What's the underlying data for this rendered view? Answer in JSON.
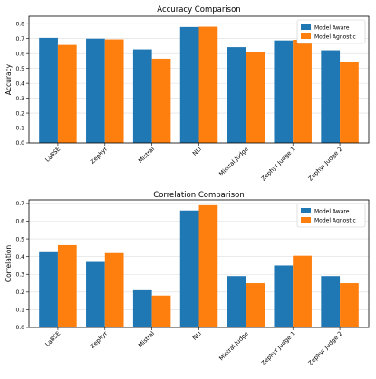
{
  "colors": {
    "aware": "#1f77b4",
    "agnostic": "#ff7f0e"
  },
  "chart_data": [
    {
      "type": "bar",
      "title": "Accuracy Comparison",
      "xlabel": "",
      "ylabel": "Accuracy",
      "ylim": [
        0,
        0.85
      ],
      "yticks": [
        "0.0",
        "0.1",
        "0.2",
        "0.3",
        "0.4",
        "0.5",
        "0.6",
        "0.7",
        "0.8"
      ],
      "grid": "y",
      "legend_position": "top-right",
      "categories": [
        "LaBSE",
        "Zephyr",
        "Mistral",
        "NLI",
        "Mistral Judge",
        "Zephyr Judge 1",
        "Zephyr Judge 2"
      ],
      "series": [
        {
          "name": "Model Aware",
          "values": [
            0.705,
            0.7,
            0.628,
            0.778,
            0.643,
            0.688,
            0.622
          ]
        },
        {
          "name": "Model Agnostic",
          "values": [
            0.658,
            0.695,
            0.565,
            0.78,
            0.61,
            0.692,
            0.545
          ]
        }
      ]
    },
    {
      "type": "bar",
      "title": "Correlation Comparison",
      "xlabel": "",
      "ylabel": "Correlation",
      "ylim": [
        0,
        0.72
      ],
      "yticks": [
        "0.0",
        "0.1",
        "0.2",
        "0.3",
        "0.4",
        "0.5",
        "0.6",
        "0.7"
      ],
      "grid": "y",
      "legend_position": "top-right",
      "categories": [
        "LaBSE",
        "Zephyr",
        "Mistral",
        "NLI",
        "Mistral Judge",
        "Zephyr Judge 1",
        "Zephyr Judge 2"
      ],
      "series": [
        {
          "name": "Model Aware",
          "values": [
            0.425,
            0.37,
            0.21,
            0.66,
            0.29,
            0.35,
            0.29
          ]
        },
        {
          "name": "Model Agnostic",
          "values": [
            0.465,
            0.42,
            0.18,
            0.69,
            0.25,
            0.405,
            0.25
          ]
        }
      ]
    }
  ]
}
